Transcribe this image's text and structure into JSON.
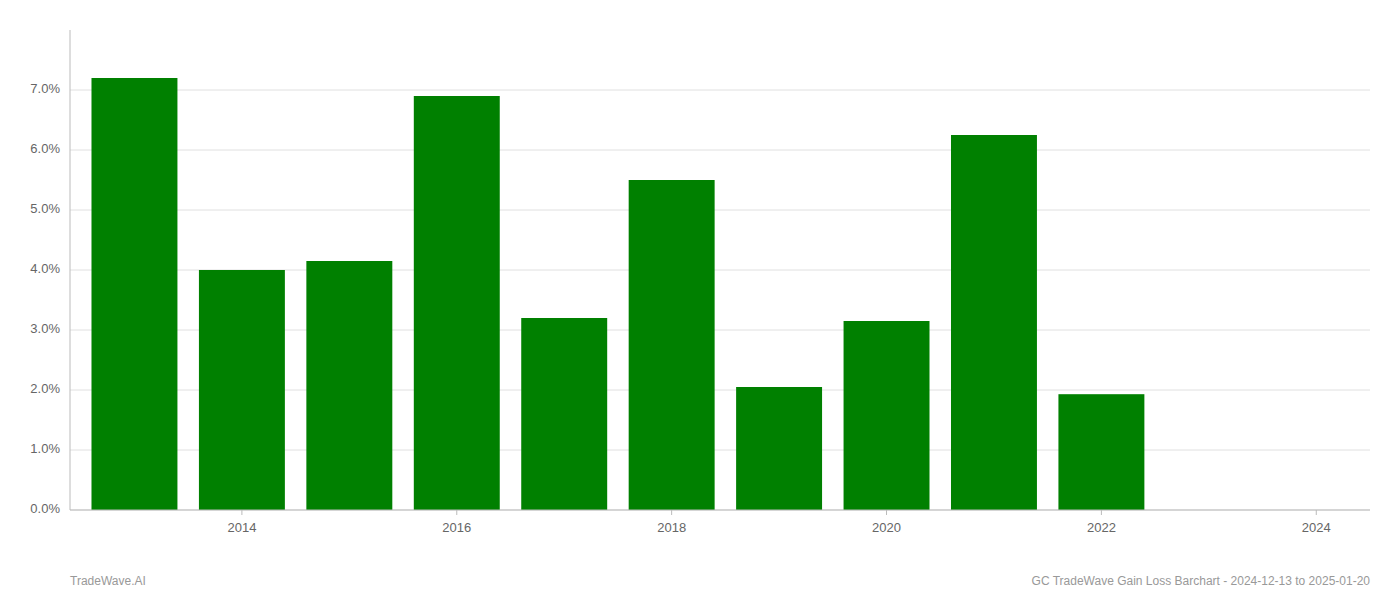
{
  "chart_data": {
    "type": "bar",
    "x": [
      2013,
      2014,
      2015,
      2016,
      2017,
      2018,
      2019,
      2020,
      2021,
      2022,
      2023
    ],
    "values": [
      0.072,
      0.04,
      0.0415,
      0.069,
      0.032,
      0.055,
      0.0205,
      0.0315,
      0.0625,
      0.0193,
      0.0
    ],
    "color": "#008000",
    "xlim": [
      2012.4,
      2024.5
    ],
    "xticks": [
      2014,
      2016,
      2018,
      2020,
      2022,
      2024
    ],
    "ylim": [
      0,
      0.08
    ],
    "yticks": [
      {
        "value": 0.0,
        "label": "0.0%"
      },
      {
        "value": 0.01,
        "label": "1.0%"
      },
      {
        "value": 0.02,
        "label": "2.0%"
      },
      {
        "value": 0.03,
        "label": "3.0%"
      },
      {
        "value": 0.04,
        "label": "4.0%"
      },
      {
        "value": 0.05,
        "label": "5.0%"
      },
      {
        "value": 0.06,
        "label": "6.0%"
      },
      {
        "value": 0.07,
        "label": "7.0%"
      }
    ],
    "grid": true,
    "annotations": [
      "TradeWave.AI",
      "GC TradeWave Gain Loss Barchart - 2024-12-13 to 2025-01-20"
    ]
  }
}
